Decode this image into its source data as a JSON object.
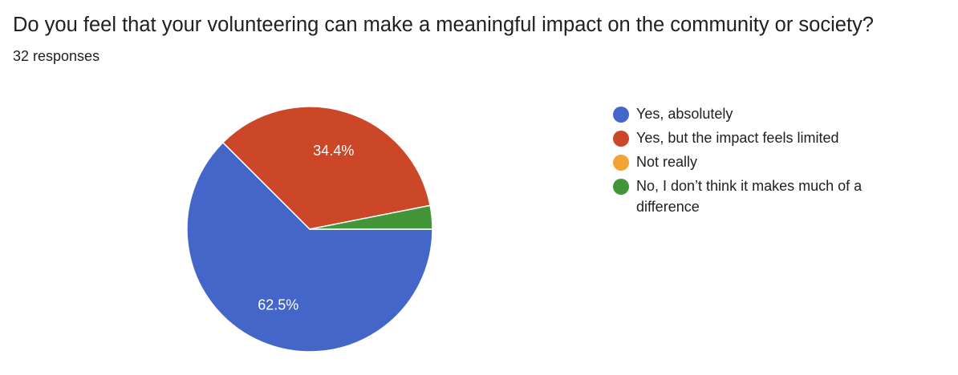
{
  "title": "Do you feel that your volunteering can make a meaningful impact on the community or society?",
  "subtitle": "32 responses",
  "chart_data": {
    "type": "pie",
    "title": "Do you feel that your volunteering can make a meaningful impact on the community or society?",
    "total_responses": 32,
    "slices": [
      {
        "label": "Yes, absolutely",
        "value": 62.5,
        "display": "62.5%",
        "color": "#4366C8"
      },
      {
        "label": "Yes, but the impact feels limited",
        "value": 34.4,
        "display": "34.4%",
        "color": "#CC4628"
      },
      {
        "label": "Not really",
        "value": 0,
        "display": "",
        "color": "#F3A235"
      },
      {
        "label": "No, I don’t think it makes much of a difference",
        "value": 3.1,
        "display": "",
        "color": "#429639"
      }
    ],
    "legend_position": "right"
  }
}
